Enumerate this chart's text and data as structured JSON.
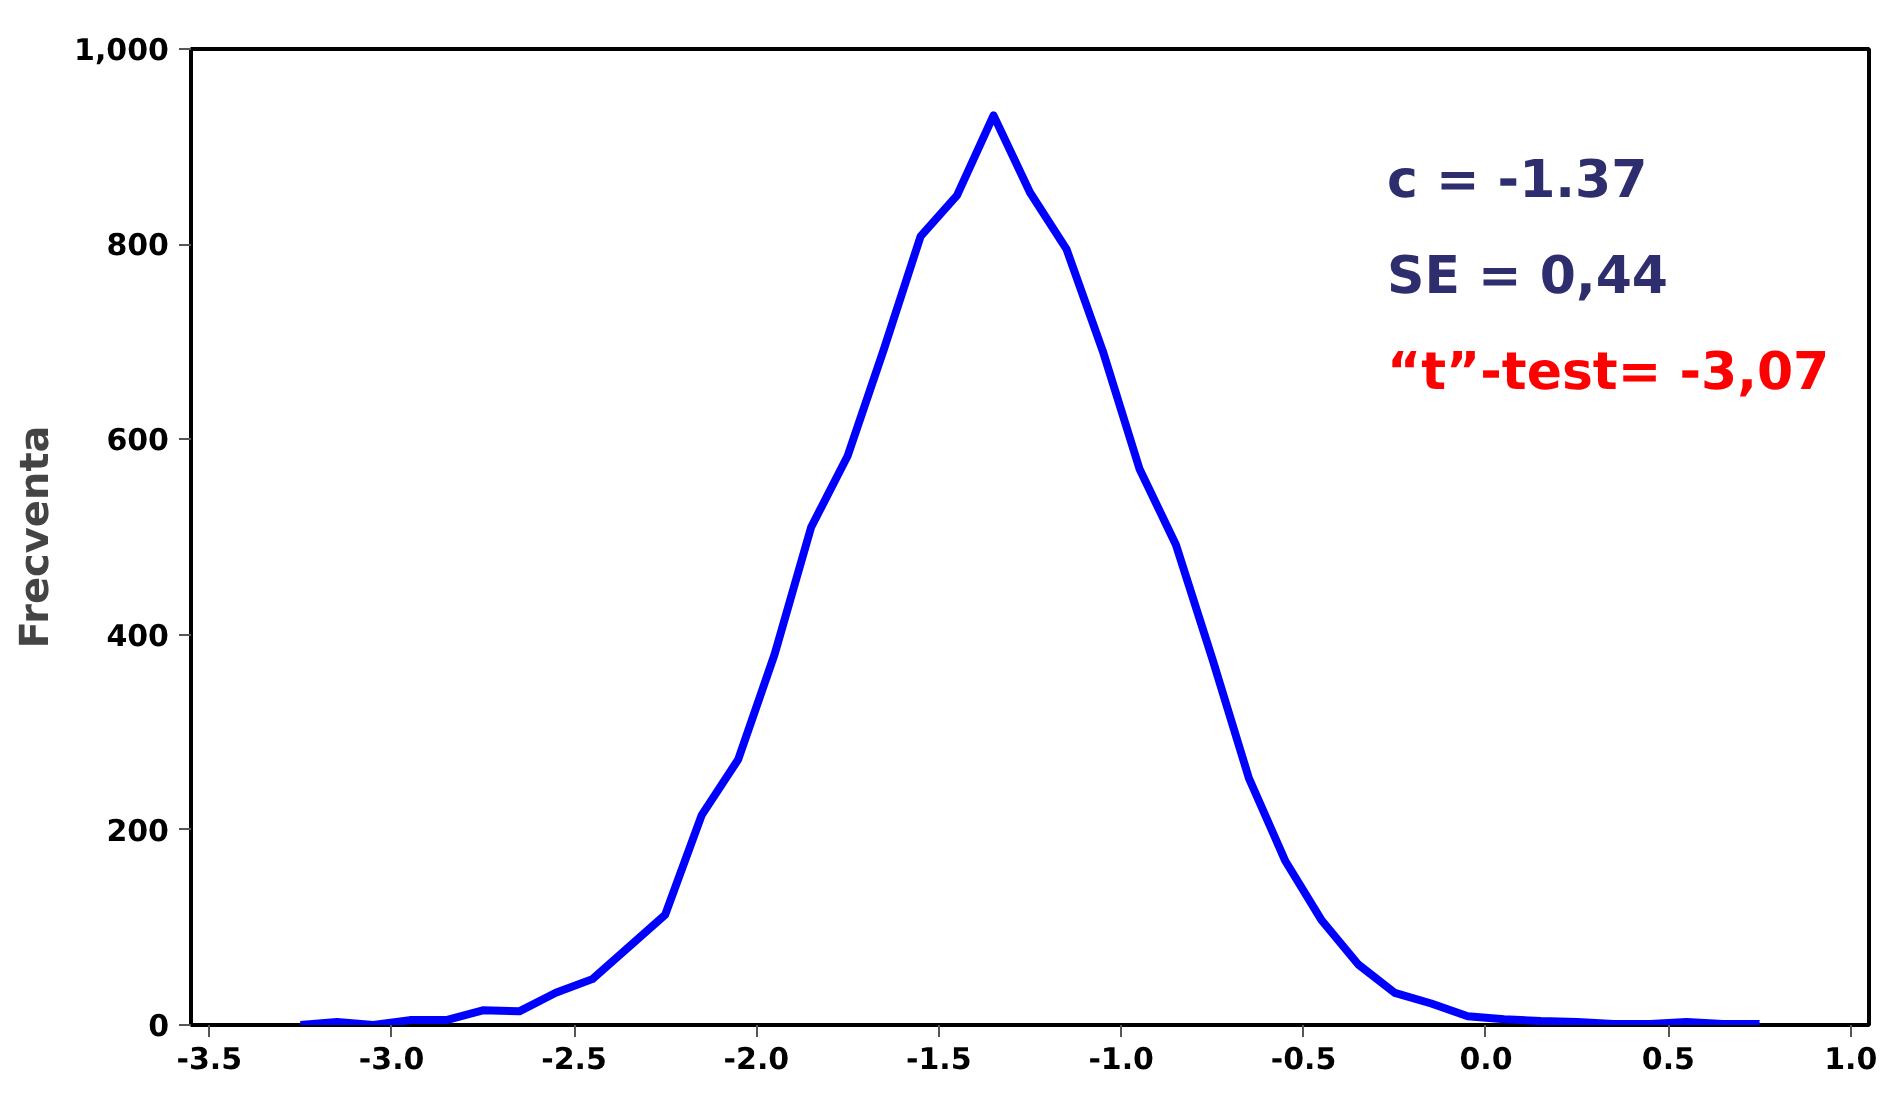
{
  "chart_data": {
    "type": "line",
    "ylabel": "Frecventa",
    "x": [
      -3.25,
      -3.15,
      -3.05,
      -2.95,
      -2.85,
      -2.75,
      -2.65,
      -2.55,
      -2.45,
      -2.35,
      -2.25,
      -2.15,
      -2.05,
      -1.95,
      -1.85,
      -1.75,
      -1.65,
      -1.55,
      -1.45,
      -1.35,
      -1.25,
      -1.15,
      -1.05,
      -0.95,
      -0.85,
      -0.75,
      -0.65,
      -0.55,
      -0.45,
      -0.35,
      -0.25,
      -0.15,
      -0.05,
      0.05,
      0.15,
      0.25,
      0.35,
      0.45,
      0.55,
      0.65,
      0.75
    ],
    "series": [
      {
        "color": "#0000ff",
        "values": [
          0,
          3,
          0,
          5,
          5,
          15,
          14,
          33,
          47,
          80,
          113,
          215,
          272,
          380,
          510,
          583,
          693,
          808,
          850,
          932,
          853,
          795,
          690,
          570,
          492,
          375,
          253,
          168,
          107,
          62,
          33,
          22,
          9,
          6,
          4,
          3,
          1,
          1,
          3,
          1,
          1
        ]
      }
    ],
    "xlim": [
      -3.55,
      1.05
    ],
    "ylim": [
      0,
      1000
    ],
    "xticks": [
      -3.5,
      {
        "value": -3,
        "label": "-3.0"
      },
      -2.5,
      {
        "value": -2,
        "label": "-2.0"
      },
      -1.5,
      {
        "value": -1,
        "label": "-1.0"
      },
      -0.5,
      {
        "value": 0,
        "label": "0.0"
      },
      0.5,
      {
        "value": 1,
        "label": "1.0"
      }
    ],
    "yticks": [
      0,
      200,
      400,
      600,
      800,
      {
        "value": 1000,
        "label": "1,000"
      }
    ],
    "grid": false,
    "marker": "none",
    "line_style": "solid",
    "annotations": [
      "c = -1.37",
      "SE = 0,44",
      "“t”-test= -3,07"
    ]
  }
}
